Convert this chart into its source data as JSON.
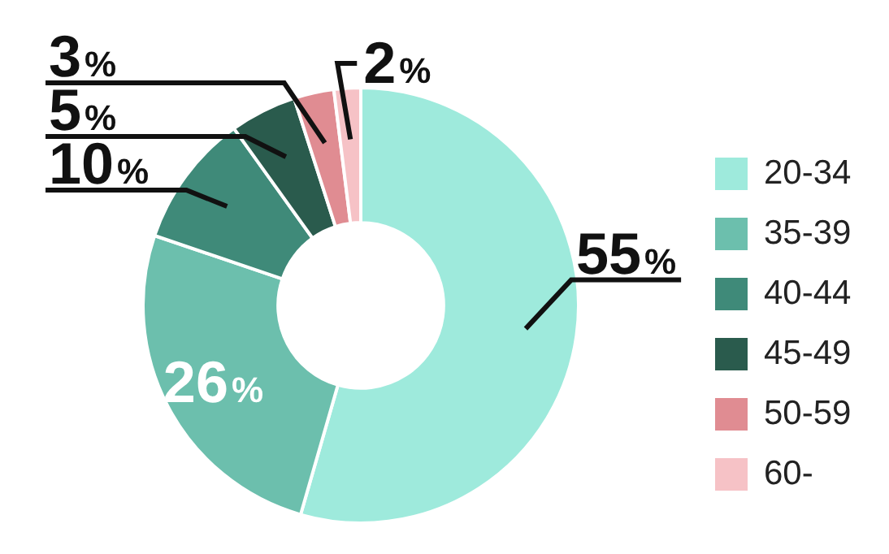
{
  "chart_data": {
    "type": "donut",
    "categories": [
      "20-34",
      "35-39",
      "40-44",
      "45-49",
      "50-59",
      "60-"
    ],
    "values": [
      55,
      26,
      10,
      5,
      3,
      2
    ],
    "colors": [
      "#9eeadc",
      "#6cbfad",
      "#3f8a79",
      "#2a5b4d",
      "#e08c92",
      "#f6c2c6"
    ],
    "value_labels": [
      "55%",
      "26%",
      "10%",
      "5%",
      "3%",
      "2%"
    ],
    "legend": "right"
  }
}
